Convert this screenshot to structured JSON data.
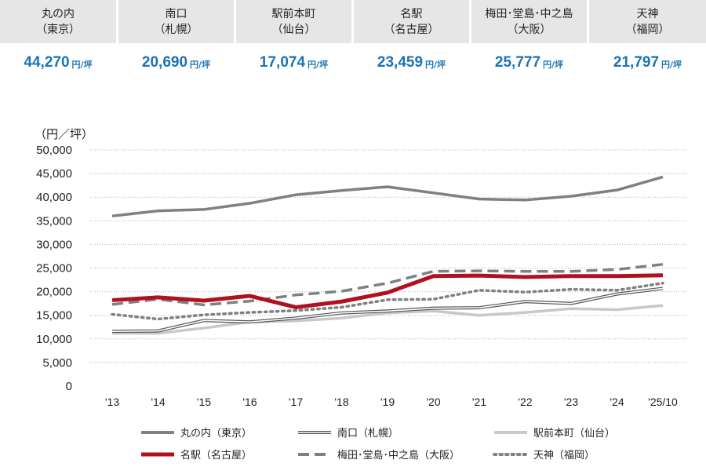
{
  "cards": [
    {
      "name": "丸の内",
      "city": "（東京）",
      "value": "44,270",
      "unit": "円/坪"
    },
    {
      "name": "南口",
      "city": "（札幌）",
      "value": "20,690",
      "unit": "円/坪"
    },
    {
      "name": "駅前本町",
      "city": "（仙台）",
      "value": "17,074",
      "unit": "円/坪"
    },
    {
      "name": "名駅",
      "city": "（名古屋）",
      "value": "23,459",
      "unit": "円/坪"
    },
    {
      "name": "梅田･堂島･中之島",
      "city": "（大阪）",
      "value": "25,777",
      "unit": "円/坪"
    },
    {
      "name": "天神",
      "city": "（福岡）",
      "value": "21,797",
      "unit": "円/坪"
    }
  ],
  "chart_data": {
    "type": "line",
    "ylabel": "（円／坪）",
    "ylim": [
      0,
      50000
    ],
    "yticks": [
      0,
      5000,
      10000,
      15000,
      20000,
      25000,
      30000,
      35000,
      40000,
      45000,
      50000
    ],
    "ytick_labels": [
      "0",
      "5,000",
      "10,000",
      "15,000",
      "20,000",
      "25,000",
      "30,000",
      "35,000",
      "40,000",
      "45,000",
      "50,000"
    ],
    "categories": [
      "'13",
      "'14",
      "'15",
      "'16",
      "'17",
      "'18",
      "'19",
      "'20",
      "'21",
      "'22",
      "'23",
      "'24",
      "'25/10"
    ],
    "grid": "horizontal-dotted",
    "legend_position": "bottom",
    "series": [
      {
        "name": "丸の内（東京）",
        "color": "#808080",
        "style": "solid",
        "values": [
          36000,
          37100,
          37400,
          38700,
          40500,
          41400,
          42200,
          40900,
          39600,
          39400,
          40200,
          41500,
          44270
        ]
      },
      {
        "name": "南口（札幌）",
        "color": "#555555",
        "style": "double",
        "values": [
          11600,
          11700,
          13900,
          13600,
          14400,
          15500,
          15900,
          16500,
          16600,
          17900,
          17500,
          19500,
          20690
        ]
      },
      {
        "name": "駅前本町（仙台）",
        "color": "#c8c8c8",
        "style": "solid",
        "values": [
          11200,
          11200,
          12300,
          13600,
          13800,
          14400,
          15500,
          15900,
          15000,
          15600,
          16400,
          16200,
          17074
        ]
      },
      {
        "name": "名駅（名古屋）",
        "color": "#b01020",
        "style": "solid",
        "values": [
          18200,
          18800,
          18100,
          19100,
          16700,
          17900,
          19800,
          23300,
          23400,
          23100,
          23300,
          23300,
          23459
        ]
      },
      {
        "name": "梅田･堂島･中之島（大阪）",
        "color": "#808080",
        "style": "dashed",
        "values": [
          17300,
          18400,
          17200,
          18000,
          19300,
          20100,
          21800,
          24300,
          24400,
          24300,
          24300,
          24700,
          25777
        ]
      },
      {
        "name": "天神（福岡）",
        "color": "#808080",
        "style": "dotted",
        "values": [
          15200,
          14200,
          15100,
          15600,
          16000,
          16700,
          18300,
          18400,
          20300,
          19900,
          20500,
          20300,
          21797
        ]
      }
    ]
  }
}
